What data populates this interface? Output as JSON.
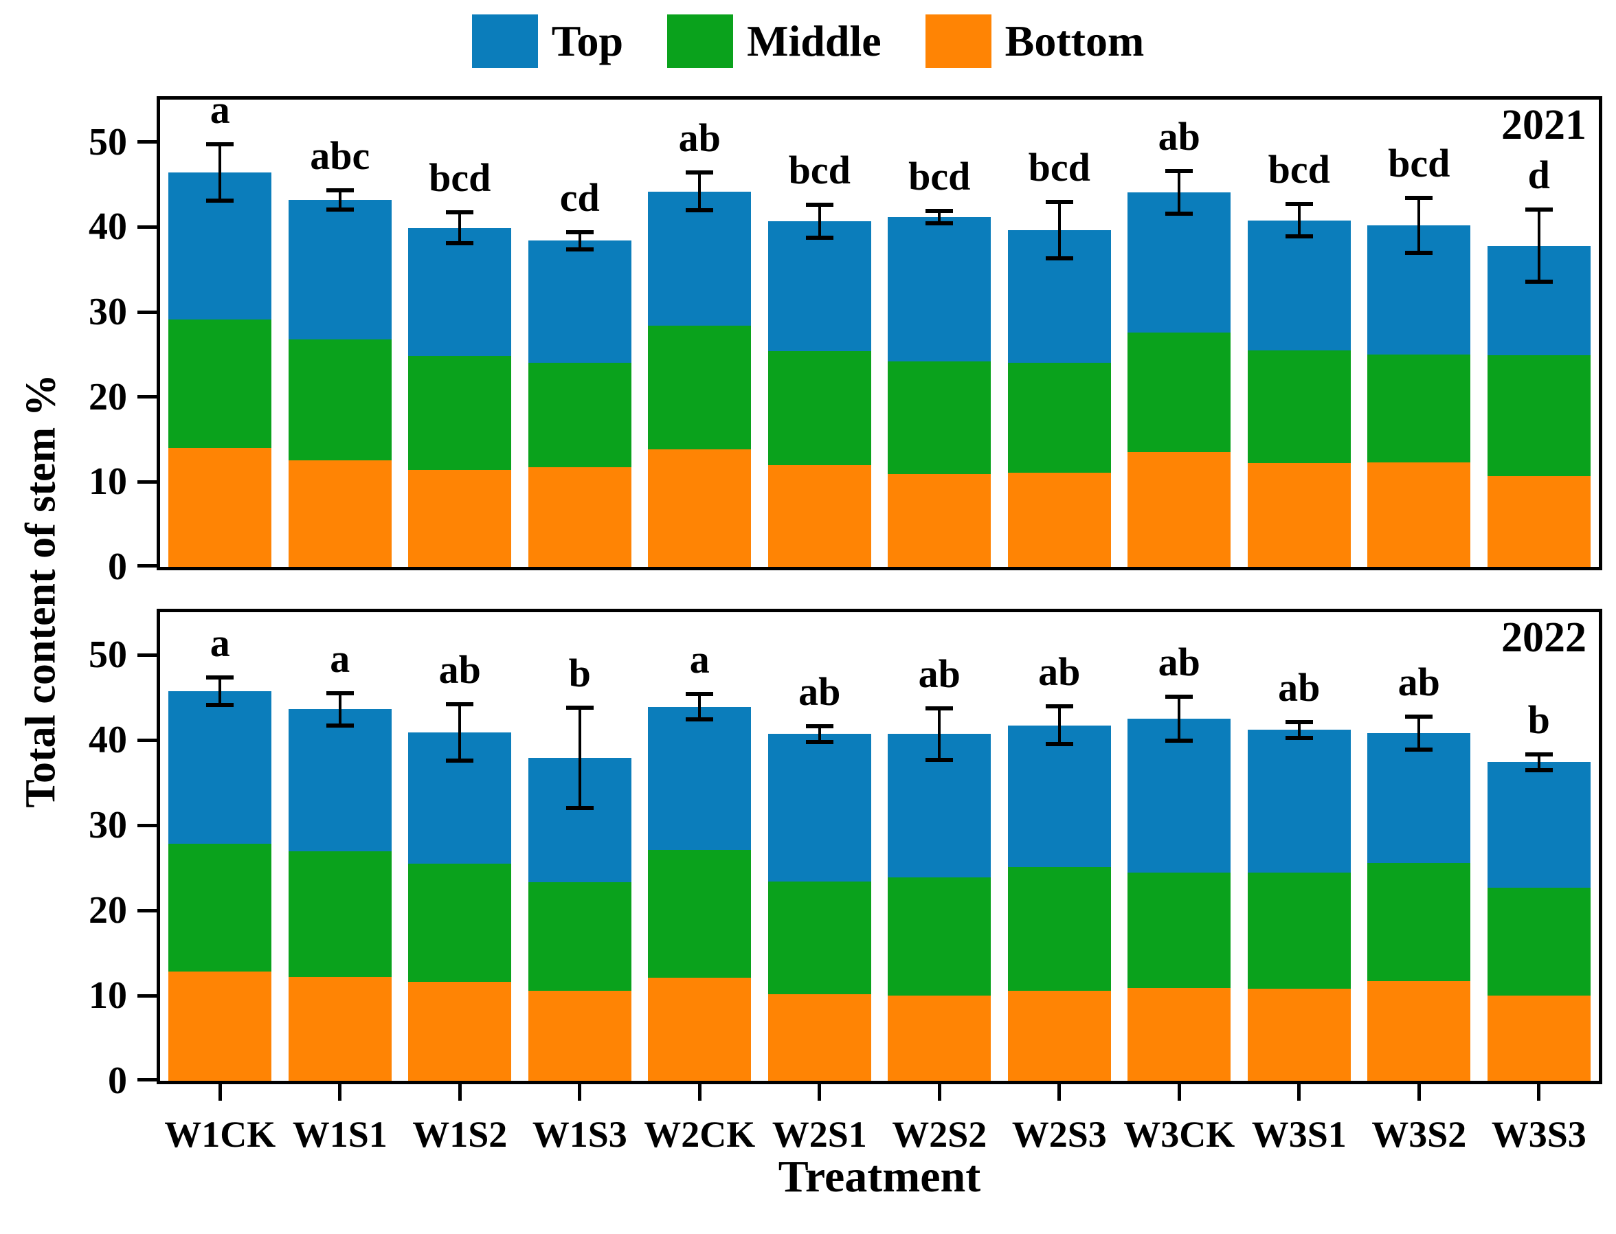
{
  "figure": {
    "y_axis_label": "Total content of stem %",
    "x_axis_label": "Treatment"
  },
  "legend": {
    "items": [
      {
        "label": "Top",
        "color": "#0b7dbb"
      },
      {
        "label": "Middle",
        "color": "#0aa21c"
      },
      {
        "label": "Bottom",
        "color": "#ff8404"
      }
    ]
  },
  "chart_data": [
    {
      "type": "bar",
      "stacked": true,
      "panel_label": "2021",
      "xlabel": "Treatment",
      "ylabel": "Total content of stem %",
      "ylim": [
        0,
        55
      ],
      "yticks": [
        0,
        10,
        20,
        30,
        40,
        50
      ],
      "grid": false,
      "legend_position": "top-center",
      "categories": [
        "W1CK",
        "W1S1",
        "W1S2",
        "W1S3",
        "W2CK",
        "W2S1",
        "W2S2",
        "W2S3",
        "W3CK",
        "W3S1",
        "W3S2",
        "W3S3"
      ],
      "series": [
        {
          "name": "Bottom",
          "color": "#ff8404",
          "values": [
            14.0,
            12.5,
            11.4,
            11.7,
            13.8,
            12.0,
            10.9,
            11.1,
            13.5,
            12.2,
            12.3,
            10.7
          ]
        },
        {
          "name": "Middle",
          "color": "#0aa21c",
          "values": [
            15.1,
            14.3,
            13.4,
            12.3,
            14.6,
            13.4,
            13.3,
            12.9,
            14.1,
            13.3,
            12.7,
            14.2
          ]
        },
        {
          "name": "Top",
          "color": "#0b7dbb",
          "values": [
            17.3,
            16.4,
            15.1,
            14.4,
            15.8,
            15.3,
            17.0,
            15.6,
            16.5,
            15.3,
            15.2,
            12.9
          ]
        }
      ],
      "totals": [
        46.4,
        43.2,
        39.9,
        38.4,
        44.2,
        40.7,
        41.2,
        39.6,
        44.1,
        40.8,
        40.2,
        37.8
      ],
      "error_bars": [
        3.4,
        1.2,
        1.9,
        1.1,
        2.3,
        2.0,
        0.8,
        3.4,
        2.6,
        2.0,
        3.3,
        4.3
      ],
      "sig_letters": [
        "a",
        "abc",
        "bcd",
        "cd",
        "ab",
        "bcd",
        "bcd",
        "bcd",
        "ab",
        "bcd",
        "bcd",
        "d"
      ]
    },
    {
      "type": "bar",
      "stacked": true,
      "panel_label": "2022",
      "xlabel": "Treatment",
      "ylabel": "Total content of stem %",
      "ylim": [
        0,
        55
      ],
      "yticks": [
        0,
        10,
        20,
        30,
        40,
        50
      ],
      "grid": false,
      "legend_position": "top-center",
      "categories": [
        "W1CK",
        "W1S1",
        "W1S2",
        "W1S3",
        "W2CK",
        "W2S1",
        "W2S2",
        "W2S3",
        "W3CK",
        "W3S1",
        "W3S2",
        "W3S3"
      ],
      "series": [
        {
          "name": "Bottom",
          "color": "#ff8404",
          "values": [
            12.8,
            12.2,
            11.6,
            10.6,
            12.1,
            10.2,
            10.0,
            10.6,
            10.9,
            10.8,
            11.7,
            10.0
          ]
        },
        {
          "name": "Middle",
          "color": "#0aa21c",
          "values": [
            15.0,
            14.7,
            13.9,
            12.7,
            15.0,
            13.2,
            13.9,
            14.5,
            13.5,
            13.6,
            13.9,
            12.7
          ]
        },
        {
          "name": "Top",
          "color": "#0b7dbb",
          "values": [
            17.9,
            16.7,
            15.4,
            14.6,
            16.8,
            17.3,
            16.8,
            16.6,
            18.1,
            16.8,
            15.2,
            14.7
          ]
        }
      ],
      "totals": [
        45.7,
        43.6,
        40.9,
        37.9,
        43.9,
        40.7,
        40.7,
        41.7,
        42.5,
        41.2,
        40.8,
        37.4
      ],
      "error_bars": [
        1.7,
        2.0,
        3.4,
        6.0,
        1.6,
        1.0,
        3.1,
        2.3,
        2.7,
        1.0,
        2.0,
        1.0
      ],
      "sig_letters": [
        "a",
        "a",
        "ab",
        "b",
        "a",
        "ab",
        "ab",
        "ab",
        "ab",
        "ab",
        "ab",
        "b"
      ]
    }
  ]
}
